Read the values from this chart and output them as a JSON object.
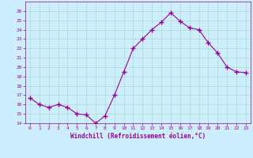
{
  "x": [
    0,
    1,
    2,
    3,
    4,
    5,
    6,
    7,
    8,
    9,
    10,
    11,
    12,
    13,
    14,
    15,
    16,
    17,
    18,
    19,
    20,
    21,
    22,
    23
  ],
  "y": [
    16.7,
    16.0,
    15.7,
    16.0,
    15.7,
    15.0,
    14.9,
    14.0,
    14.8,
    17.0,
    19.5,
    22.0,
    23.0,
    24.0,
    24.8,
    25.8,
    24.9,
    24.2,
    24.0,
    22.6,
    21.5,
    20.0,
    19.5,
    19.4
  ],
  "line_color": "#990099",
  "marker": "+",
  "marker_size": 4,
  "bg_color": "#cceeff",
  "grid_color": "#aaddcc",
  "xlabel": "Windchill (Refroidissement éolien,°C)",
  "xlabel_color": "#990099",
  "tick_color": "#990099",
  "ylim": [
    14,
    27
  ],
  "xlim": [
    -0.5,
    23.5
  ],
  "yticks": [
    14,
    15,
    16,
    17,
    18,
    19,
    20,
    21,
    22,
    23,
    24,
    25,
    26
  ],
  "xticks": [
    0,
    1,
    2,
    3,
    4,
    5,
    6,
    7,
    8,
    9,
    10,
    11,
    12,
    13,
    14,
    15,
    16,
    17,
    18,
    19,
    20,
    21,
    22,
    23
  ],
  "xtick_labels": [
    "0",
    "1",
    "2",
    "3",
    "4",
    "5",
    "6",
    "7",
    "8",
    "9",
    "10",
    "11",
    "12",
    "13",
    "14",
    "15",
    "16",
    "17",
    "18",
    "19",
    "20",
    "21",
    "22",
    "23"
  ]
}
